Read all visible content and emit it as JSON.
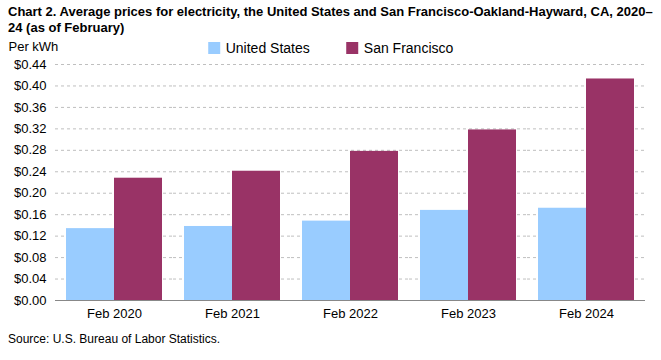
{
  "chart_data": {
    "type": "bar",
    "title": "Chart 2. Average prices for electricity, the United States and San Francisco-Oakland-Hayward, CA, 2020–24 (as of February)",
    "y_label": "Per kWh",
    "caption": "Source: U.S. Bureau of Labor Statistics.",
    "categories": [
      "Feb 2020",
      "Feb 2021",
      "Feb 2022",
      "Feb 2023",
      "Feb 2024"
    ],
    "series": [
      {
        "name": "United States",
        "color": "#99ccff",
        "values": [
          0.134,
          0.138,
          0.148,
          0.168,
          0.172
        ]
      },
      {
        "name": "San Francisco",
        "color": "#993366",
        "values": [
          0.228,
          0.241,
          0.278,
          0.318,
          0.413
        ]
      }
    ],
    "ylim": [
      0,
      0.44
    ],
    "yticks": [
      {
        "value": 0,
        "label": "$0.00"
      },
      {
        "value": 0.04,
        "label": "$0.04"
      },
      {
        "value": 0.08,
        "label": "$0.08"
      },
      {
        "value": 0.12,
        "label": "$0.12"
      },
      {
        "value": 0.16,
        "label": "$0.16"
      },
      {
        "value": 0.2,
        "label": "$0.20"
      },
      {
        "value": 0.24,
        "label": "$0.24"
      },
      {
        "value": 0.28,
        "label": "$0.28"
      },
      {
        "value": 0.32,
        "label": "$0.32"
      },
      {
        "value": 0.36,
        "label": "$0.36"
      },
      {
        "value": 0.4,
        "label": "$0.40"
      },
      {
        "value": 0.44,
        "label": "$0.44"
      }
    ],
    "grid": true,
    "legend": "top"
  }
}
